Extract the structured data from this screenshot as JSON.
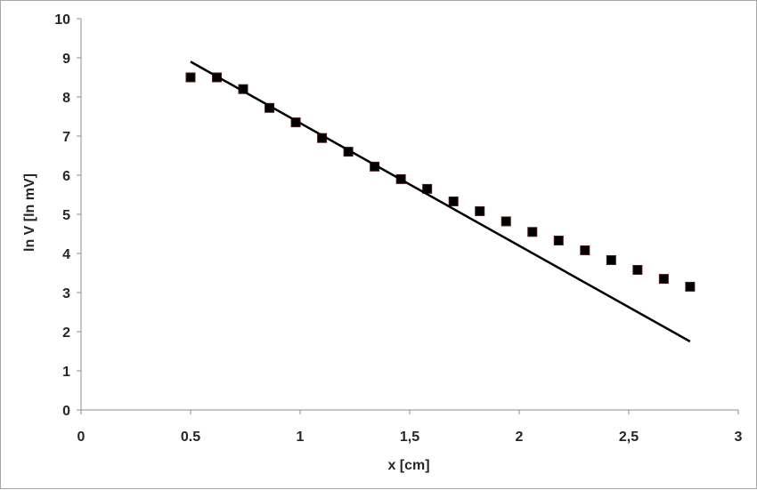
{
  "chart_data": {
    "type": "scatter",
    "xlabel": "x [cm]",
    "ylabel": "ln V [ln mV]",
    "xlim": [
      0,
      3
    ],
    "ylim": [
      0,
      10
    ],
    "x_ticks": [
      0,
      0.5,
      1,
      1.5,
      2,
      2.5,
      3
    ],
    "x_tick_labels": [
      "0",
      "0.5",
      "1",
      "1,5",
      "2",
      "2,5",
      "3"
    ],
    "y_ticks": [
      0,
      1,
      2,
      3,
      4,
      5,
      6,
      7,
      8,
      9,
      10
    ],
    "y_tick_labels": [
      "0",
      "1",
      "2",
      "3",
      "4",
      "5",
      "6",
      "7",
      "8",
      "9",
      "10"
    ],
    "grid": false,
    "legend": "none",
    "series": [
      {
        "kind": "markers",
        "marker": "square",
        "color": "#000000",
        "x": [
          0.5,
          0.62,
          0.74,
          0.86,
          0.98,
          1.1,
          1.22,
          1.34,
          1.46,
          1.58,
          1.7,
          1.82,
          1.94,
          2.06,
          2.18,
          2.3,
          2.42,
          2.54,
          2.66,
          2.78
        ],
        "y": [
          8.5,
          8.5,
          8.2,
          7.72,
          7.35,
          6.95,
          6.6,
          6.22,
          5.9,
          5.65,
          5.33,
          5.08,
          4.82,
          4.55,
          4.33,
          4.08,
          3.83,
          3.58,
          3.35,
          3.15
        ]
      },
      {
        "kind": "line",
        "color": "#000000",
        "x": [
          0.5,
          2.78
        ],
        "y": [
          8.9,
          1.75
        ]
      }
    ]
  }
}
